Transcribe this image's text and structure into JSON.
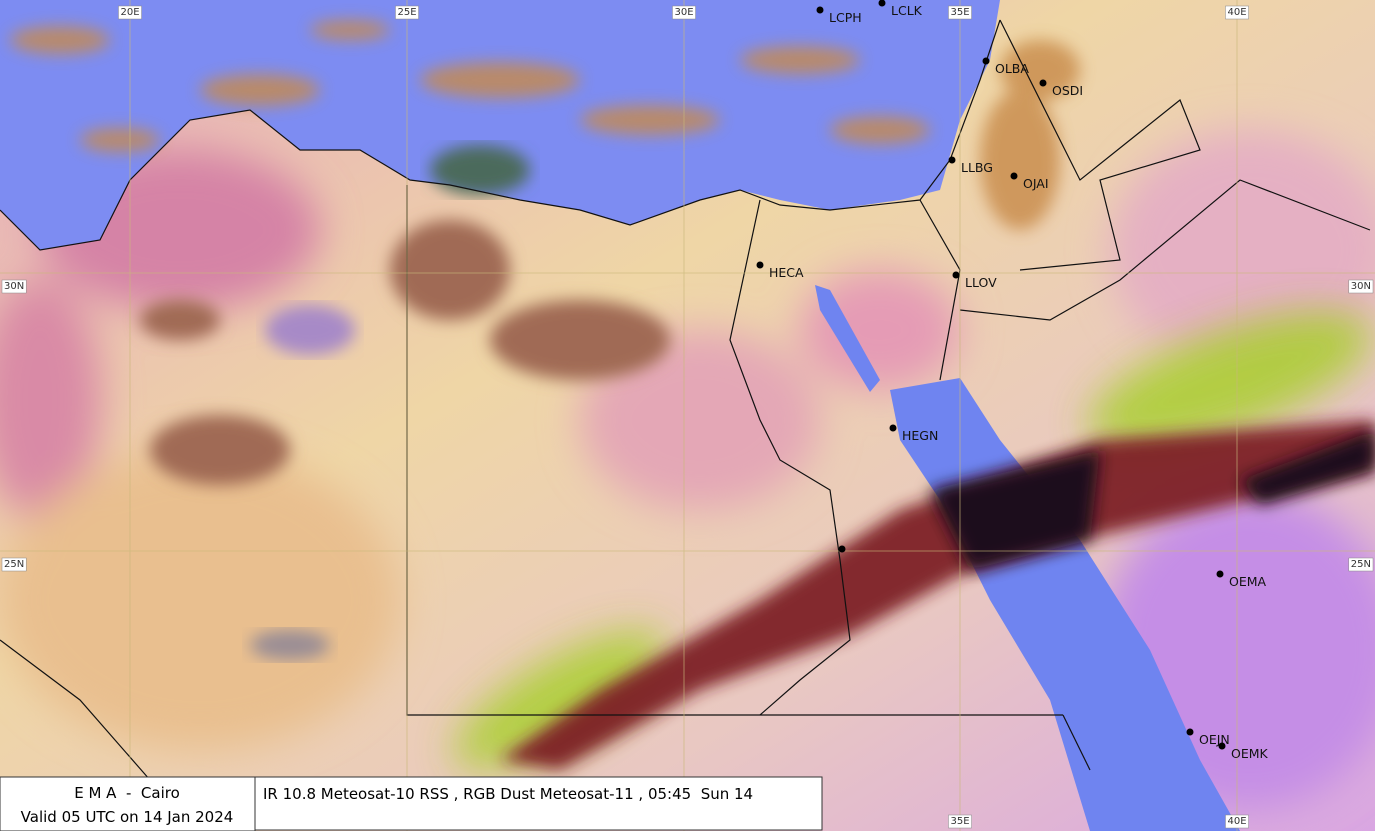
{
  "grid": {
    "lon_labels": [
      "20E",
      "25E",
      "30E",
      "35E",
      "40E"
    ],
    "lat_labels": [
      "30N",
      "25N"
    ]
  },
  "stations": [
    {
      "label": "LCPH"
    },
    {
      "label": "LCLK"
    },
    {
      "label": "OLBA"
    },
    {
      "label": "OSDI"
    },
    {
      "label": "LLBG"
    },
    {
      "label": "OJAI"
    },
    {
      "label": "HECA"
    },
    {
      "label": "LLOV"
    },
    {
      "label": "HEGN"
    },
    {
      "label": "OEMA"
    },
    {
      "label": "OEJN"
    },
    {
      "label": "OEMK"
    }
  ],
  "caption": {
    "agency": "E M A  -  Cairo",
    "valid": "Valid 05 UTC on 14 Jan 2024",
    "product": "IR 10.8 Meteosat-10 RSS , RGB Dust Meteosat-11 , 05:45  Sun 14"
  }
}
